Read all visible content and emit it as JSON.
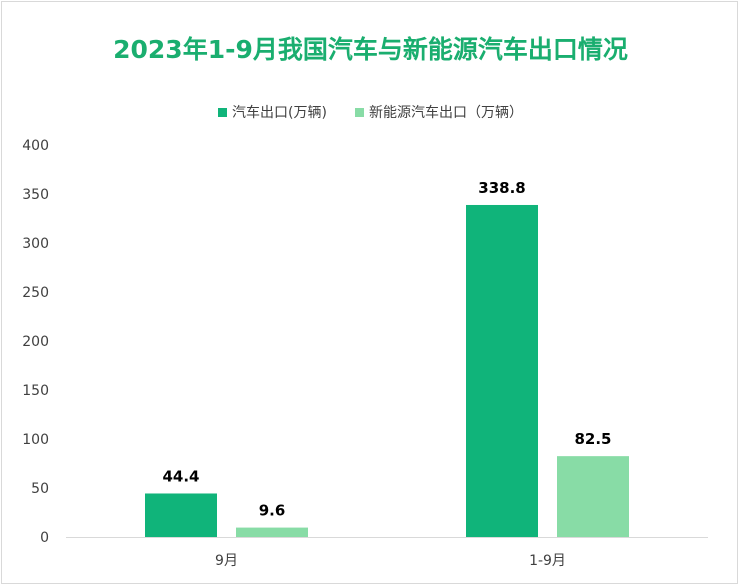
{
  "title": "2023年1-9月我国汽车与新能源汽车出口情况",
  "colors": {
    "series1": "#10b47a",
    "series2": "#88dca6",
    "title": "#1aae6f"
  },
  "chart_data": {
    "type": "bar",
    "title": "2023年1-9月我国汽车与新能源汽车出口情况",
    "categories": [
      "9月",
      "1-9月"
    ],
    "series": [
      {
        "name": "汽车出口(万辆)",
        "values": [
          44.4,
          338.8
        ],
        "labels": [
          "44.4",
          "338.8"
        ]
      },
      {
        "name": "新能源汽车出口（万辆）",
        "values": [
          9.6,
          82.5
        ],
        "labels": [
          "9.6",
          "82.5"
        ]
      }
    ],
    "yticks": [
      "0",
      "50",
      "100",
      "150",
      "200",
      "250",
      "300",
      "350",
      "400"
    ],
    "ylim": [
      0,
      400
    ],
    "grid": false,
    "legend_position": "top"
  }
}
